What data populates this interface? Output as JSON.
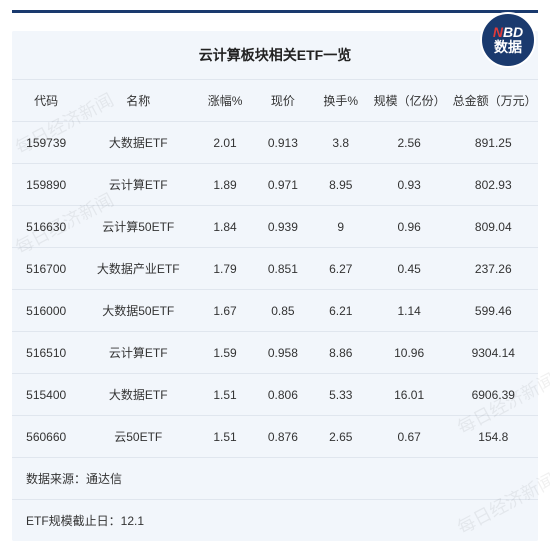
{
  "logo": {
    "nbd_n": "N",
    "nbd_bd": "BD",
    "sub": "数据"
  },
  "table": {
    "title": "云计算板块相关ETF一览",
    "columns": [
      "代码",
      "名称",
      "涨幅%",
      "现价",
      "换手%",
      "规模（亿份）",
      "总金额（万元）"
    ],
    "rows": [
      [
        "159739",
        "大数据ETF",
        "2.01",
        "0.913",
        "3.8",
        "2.56",
        "891.25"
      ],
      [
        "159890",
        "云计算ETF",
        "1.89",
        "0.971",
        "8.95",
        "0.93",
        "802.93"
      ],
      [
        "516630",
        "云计算50ETF",
        "1.84",
        "0.939",
        "9",
        "0.96",
        "809.04"
      ],
      [
        "516700",
        "大数据产业ETF",
        "1.79",
        "0.851",
        "6.27",
        "0.45",
        "237.26"
      ],
      [
        "516000",
        "大数据50ETF",
        "1.67",
        "0.85",
        "6.21",
        "1.14",
        "599.46"
      ],
      [
        "516510",
        "云计算ETF",
        "1.59",
        "0.958",
        "8.86",
        "10.96",
        "9304.14"
      ],
      [
        "515400",
        "大数据ETF",
        "1.51",
        "0.806",
        "5.33",
        "16.01",
        "6906.39"
      ],
      [
        "560660",
        "云50ETF",
        "1.51",
        "0.876",
        "2.65",
        "0.67",
        "154.8"
      ]
    ],
    "source": "数据来源：通达信",
    "cutoff": "ETF规模截止日：12.1"
  },
  "watermark": "每日经济新闻"
}
